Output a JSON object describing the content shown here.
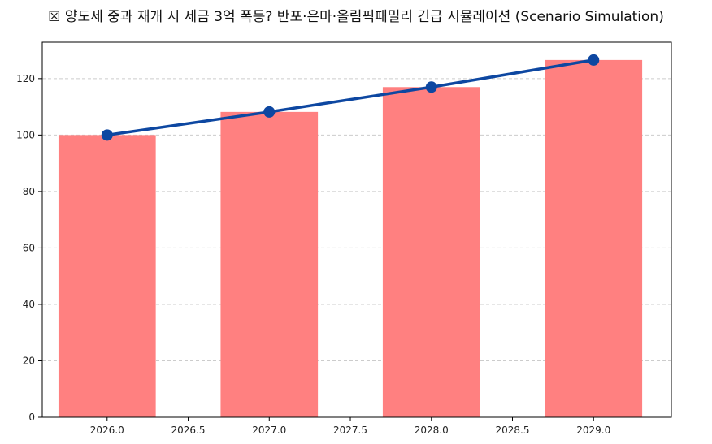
{
  "chart_data": {
    "type": "bar",
    "title": "☒ 양도세 중과 재개 시 세금 3억 폭등? 반포·은마·올림픽패밀리 긴급 시뮬레이션 (Scenario Simulation)",
    "xlabel": "",
    "ylabel": "",
    "x": [
      2026.0,
      2027.0,
      2028.0,
      2029.0
    ],
    "series": [
      {
        "type": "bar",
        "values": [
          100,
          108.2,
          117.0,
          126.6
        ],
        "color": "#ff8080"
      },
      {
        "type": "line",
        "values": [
          100,
          108.2,
          117.0,
          126.6
        ],
        "color": "#0d47a1",
        "marker": "circle"
      }
    ],
    "xlim": [
      2025.6,
      2029.48
    ],
    "ylim": [
      0,
      132.9
    ],
    "x_ticks": [
      "2026.0",
      "2026.5",
      "2027.0",
      "2027.5",
      "2028.0",
      "2028.5",
      "2029.0"
    ],
    "y_ticks": [
      "0",
      "20",
      "40",
      "60",
      "80",
      "100",
      "120"
    ],
    "grid": "y-dashed"
  }
}
